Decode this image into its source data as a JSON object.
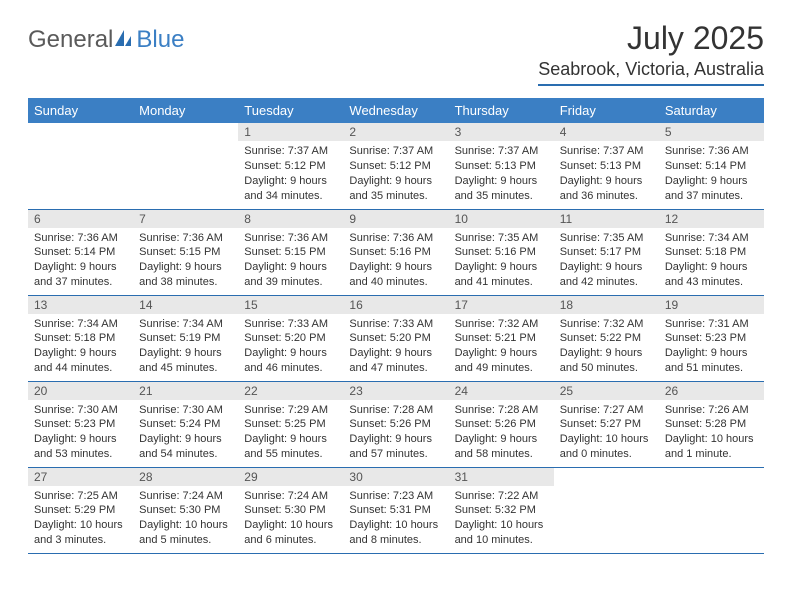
{
  "logo": {
    "general": "General",
    "blue": "Blue"
  },
  "title": "July 2025",
  "location": "Seabrook, Victoria, Australia",
  "colors": {
    "header_bg": "#3b7fc4",
    "border": "#2a6db0",
    "daynum_bg": "#e8e8e8",
    "text": "#333333"
  },
  "weekdays": [
    "Sunday",
    "Monday",
    "Tuesday",
    "Wednesday",
    "Thursday",
    "Friday",
    "Saturday"
  ],
  "grid": [
    [
      {
        "empty": true
      },
      {
        "empty": true
      },
      {
        "n": "1",
        "sr": "7:37 AM",
        "ss": "5:12 PM",
        "dl": "9 hours and 34 minutes."
      },
      {
        "n": "2",
        "sr": "7:37 AM",
        "ss": "5:12 PM",
        "dl": "9 hours and 35 minutes."
      },
      {
        "n": "3",
        "sr": "7:37 AM",
        "ss": "5:13 PM",
        "dl": "9 hours and 35 minutes."
      },
      {
        "n": "4",
        "sr": "7:37 AM",
        "ss": "5:13 PM",
        "dl": "9 hours and 36 minutes."
      },
      {
        "n": "5",
        "sr": "7:36 AM",
        "ss": "5:14 PM",
        "dl": "9 hours and 37 minutes."
      }
    ],
    [
      {
        "n": "6",
        "sr": "7:36 AM",
        "ss": "5:14 PM",
        "dl": "9 hours and 37 minutes."
      },
      {
        "n": "7",
        "sr": "7:36 AM",
        "ss": "5:15 PM",
        "dl": "9 hours and 38 minutes."
      },
      {
        "n": "8",
        "sr": "7:36 AM",
        "ss": "5:15 PM",
        "dl": "9 hours and 39 minutes."
      },
      {
        "n": "9",
        "sr": "7:36 AM",
        "ss": "5:16 PM",
        "dl": "9 hours and 40 minutes."
      },
      {
        "n": "10",
        "sr": "7:35 AM",
        "ss": "5:16 PM",
        "dl": "9 hours and 41 minutes."
      },
      {
        "n": "11",
        "sr": "7:35 AM",
        "ss": "5:17 PM",
        "dl": "9 hours and 42 minutes."
      },
      {
        "n": "12",
        "sr": "7:34 AM",
        "ss": "5:18 PM",
        "dl": "9 hours and 43 minutes."
      }
    ],
    [
      {
        "n": "13",
        "sr": "7:34 AM",
        "ss": "5:18 PM",
        "dl": "9 hours and 44 minutes."
      },
      {
        "n": "14",
        "sr": "7:34 AM",
        "ss": "5:19 PM",
        "dl": "9 hours and 45 minutes."
      },
      {
        "n": "15",
        "sr": "7:33 AM",
        "ss": "5:20 PM",
        "dl": "9 hours and 46 minutes."
      },
      {
        "n": "16",
        "sr": "7:33 AM",
        "ss": "5:20 PM",
        "dl": "9 hours and 47 minutes."
      },
      {
        "n": "17",
        "sr": "7:32 AM",
        "ss": "5:21 PM",
        "dl": "9 hours and 49 minutes."
      },
      {
        "n": "18",
        "sr": "7:32 AM",
        "ss": "5:22 PM",
        "dl": "9 hours and 50 minutes."
      },
      {
        "n": "19",
        "sr": "7:31 AM",
        "ss": "5:23 PM",
        "dl": "9 hours and 51 minutes."
      }
    ],
    [
      {
        "n": "20",
        "sr": "7:30 AM",
        "ss": "5:23 PM",
        "dl": "9 hours and 53 minutes."
      },
      {
        "n": "21",
        "sr": "7:30 AM",
        "ss": "5:24 PM",
        "dl": "9 hours and 54 minutes."
      },
      {
        "n": "22",
        "sr": "7:29 AM",
        "ss": "5:25 PM",
        "dl": "9 hours and 55 minutes."
      },
      {
        "n": "23",
        "sr": "7:28 AM",
        "ss": "5:26 PM",
        "dl": "9 hours and 57 minutes."
      },
      {
        "n": "24",
        "sr": "7:28 AM",
        "ss": "5:26 PM",
        "dl": "9 hours and 58 minutes."
      },
      {
        "n": "25",
        "sr": "7:27 AM",
        "ss": "5:27 PM",
        "dl": "10 hours and 0 minutes."
      },
      {
        "n": "26",
        "sr": "7:26 AM",
        "ss": "5:28 PM",
        "dl": "10 hours and 1 minute."
      }
    ],
    [
      {
        "n": "27",
        "sr": "7:25 AM",
        "ss": "5:29 PM",
        "dl": "10 hours and 3 minutes."
      },
      {
        "n": "28",
        "sr": "7:24 AM",
        "ss": "5:30 PM",
        "dl": "10 hours and 5 minutes."
      },
      {
        "n": "29",
        "sr": "7:24 AM",
        "ss": "5:30 PM",
        "dl": "10 hours and 6 minutes."
      },
      {
        "n": "30",
        "sr": "7:23 AM",
        "ss": "5:31 PM",
        "dl": "10 hours and 8 minutes."
      },
      {
        "n": "31",
        "sr": "7:22 AM",
        "ss": "5:32 PM",
        "dl": "10 hours and 10 minutes."
      },
      {
        "empty": true
      },
      {
        "empty": true
      }
    ]
  ],
  "labels": {
    "sunrise": "Sunrise:",
    "sunset": "Sunset:",
    "daylight": "Daylight:"
  }
}
